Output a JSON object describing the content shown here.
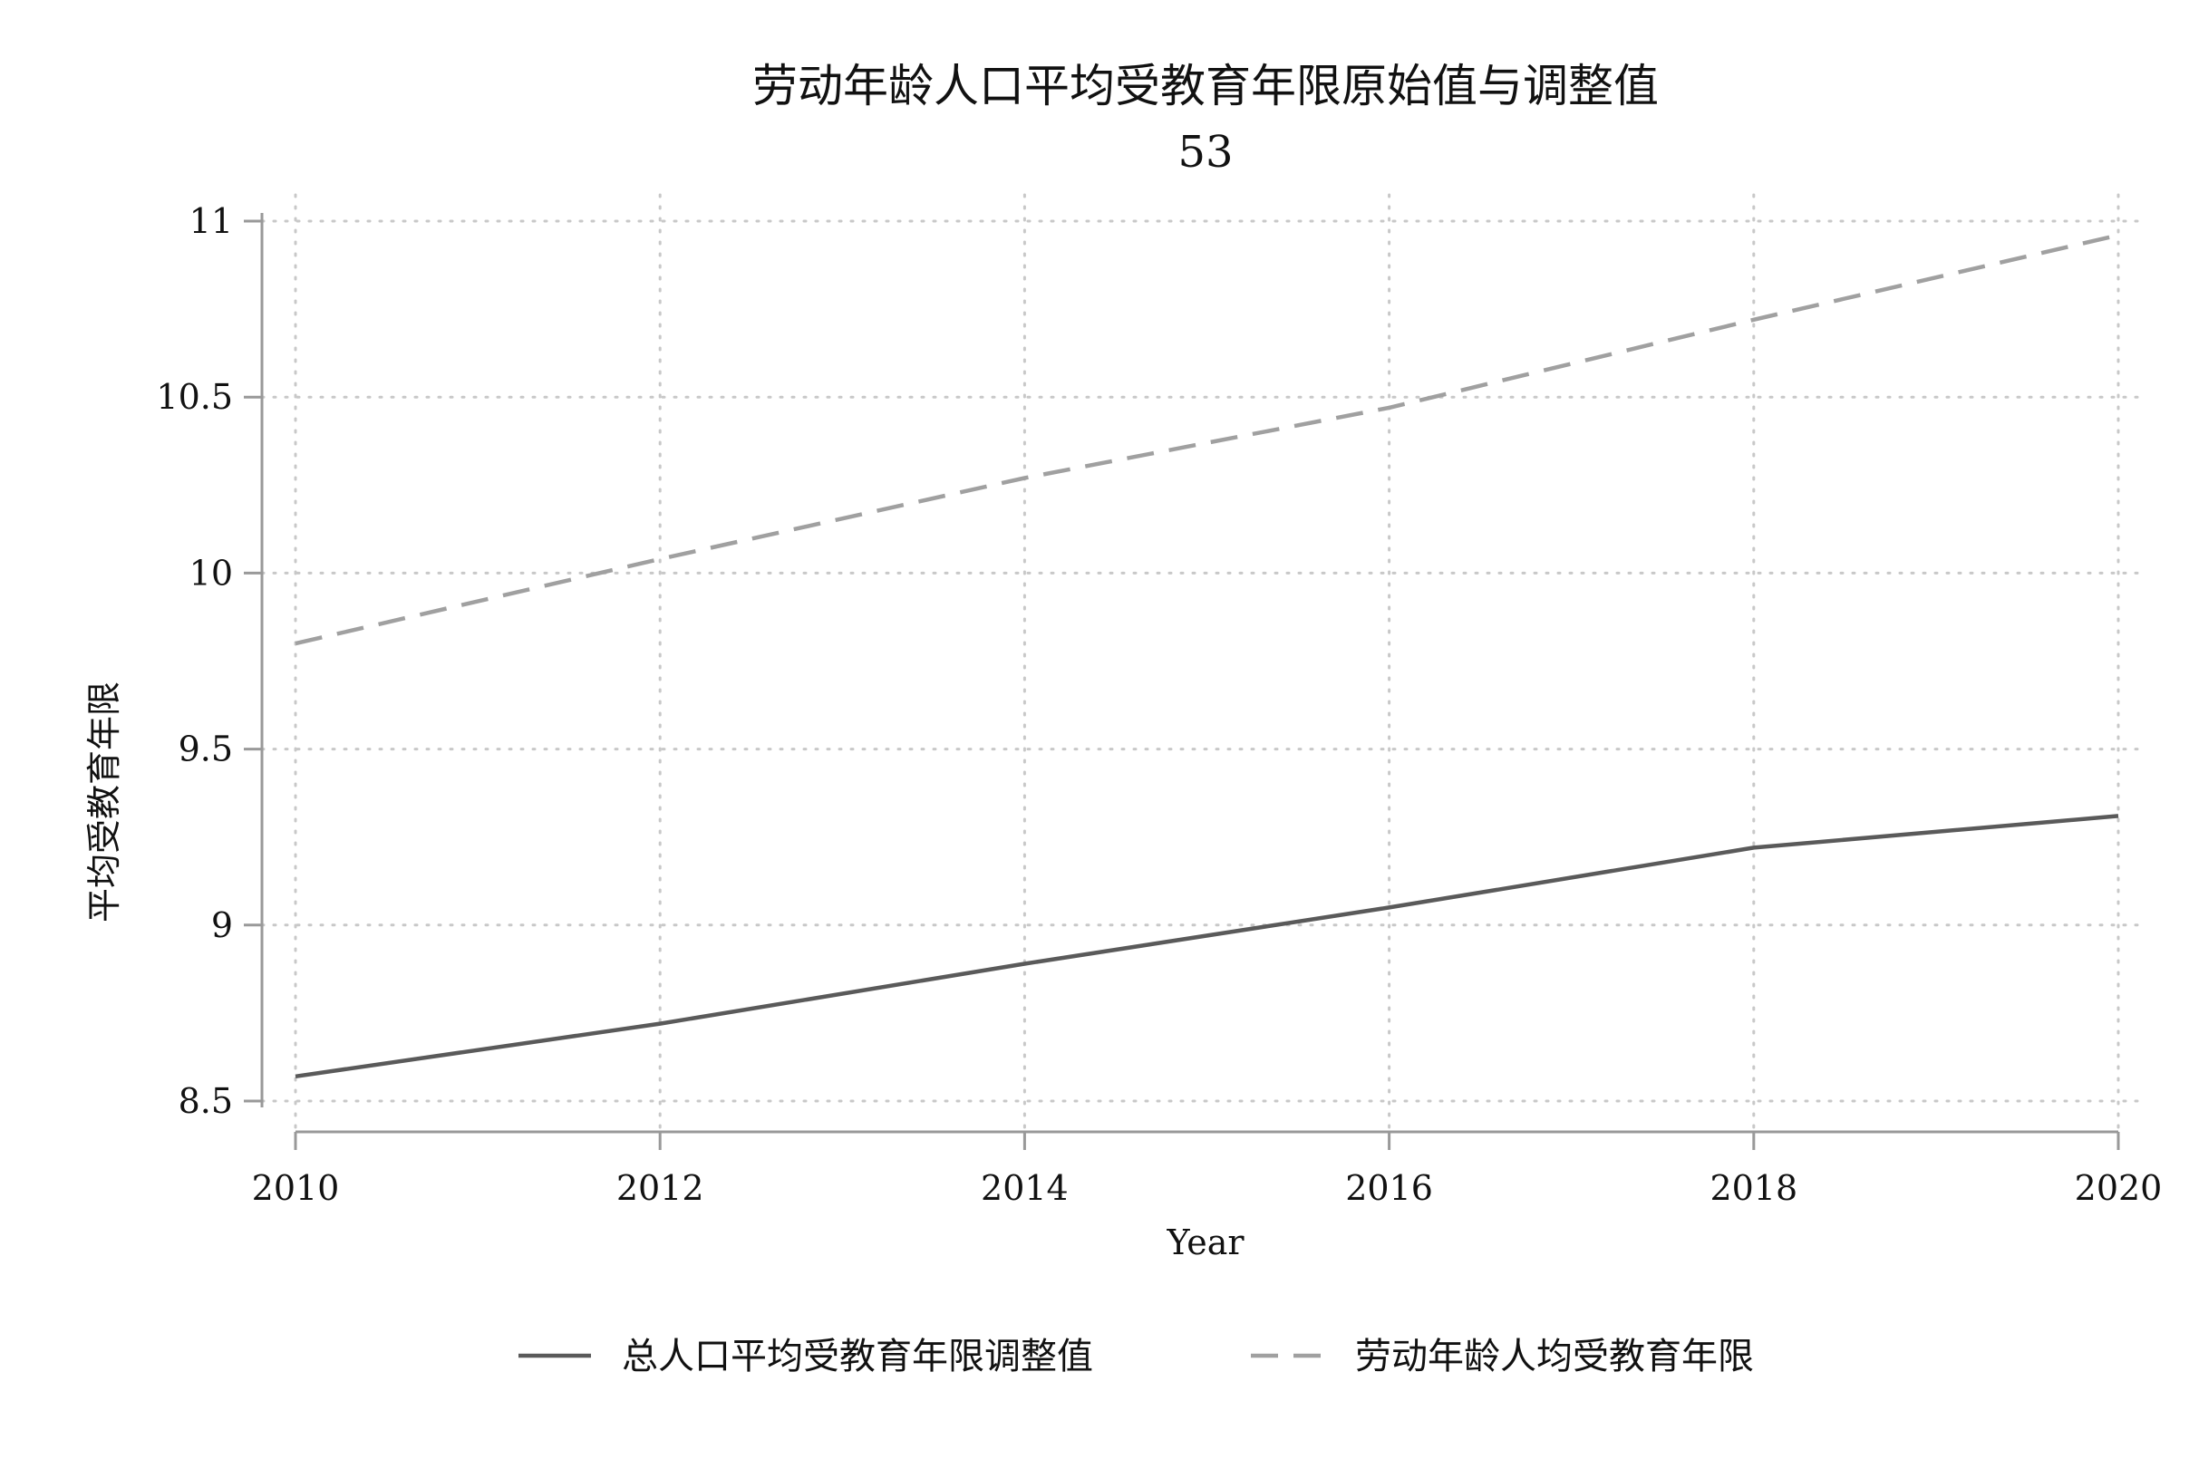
{
  "chart_data": {
    "type": "line",
    "title": "劳动年龄人口平均受教育年限原始值与调整值",
    "subtitle": "53",
    "xlabel": "Year",
    "ylabel": "平均受教育年限",
    "x": [
      2010,
      2012,
      2014,
      2016,
      2018,
      2020
    ],
    "x_ticks": [
      "2010",
      "2012",
      "2014",
      "2016",
      "2018",
      "2020"
    ],
    "y_ticks": [
      "8.5",
      "9",
      "9.5",
      "10",
      "10.5",
      "11"
    ],
    "y_tick_values": [
      8.5,
      9,
      9.5,
      10,
      10.5,
      11
    ],
    "xlim": [
      2010,
      2020
    ],
    "ylim": [
      8.45,
      11.02
    ],
    "grid": true,
    "legend_position": "bottom",
    "series": [
      {
        "name": "总人口平均受教育年限调整值",
        "style": "solid",
        "color": "#5a5a5a",
        "values": [
          8.57,
          8.72,
          8.89,
          9.05,
          9.22,
          9.31
        ]
      },
      {
        "name": "劳动年龄人均受教育年限",
        "style": "dashed",
        "color": "#a0a0a0",
        "values": [
          9.8,
          10.04,
          10.27,
          10.47,
          10.72,
          10.96
        ]
      }
    ]
  }
}
